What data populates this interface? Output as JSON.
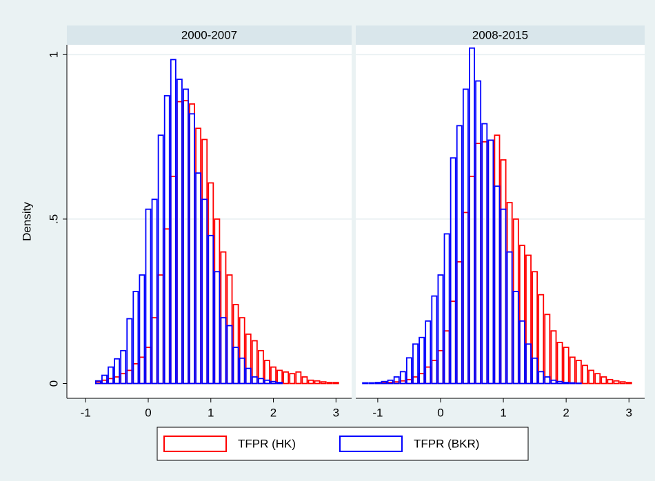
{
  "chart_data": [
    {
      "type": "histogram",
      "title": "2000-2007",
      "y_label": "Density",
      "bins": [
        -0.85,
        -0.75,
        -0.65,
        -0.55,
        -0.45,
        -0.35,
        -0.25,
        -0.15,
        -0.05,
        0.05,
        0.15,
        0.25,
        0.35,
        0.45,
        0.55,
        0.65,
        0.75,
        0.85,
        0.95,
        1.05,
        1.15,
        1.25,
        1.35,
        1.45,
        1.55,
        1.65,
        1.75,
        1.85,
        1.95,
        2.05,
        2.15,
        2.25,
        2.35,
        2.45,
        2.55,
        2.65,
        2.75,
        2.85,
        2.95,
        3.05
      ],
      "series": [
        {
          "name": "TFPR (HK)",
          "color": "#ff0000",
          "values": [
            0.005,
            0.01,
            0.015,
            0.02,
            0.03,
            0.04,
            0.06,
            0.08,
            0.11,
            0.2,
            0.33,
            0.47,
            0.63,
            0.857,
            0.86,
            0.85,
            0.776,
            0.742,
            0.61,
            0.5,
            0.4,
            0.33,
            0.24,
            0.2,
            0.15,
            0.13,
            0.1,
            0.07,
            0.05,
            0.04,
            0.035,
            0.03,
            0.035,
            0.02,
            0.01,
            0.008,
            0.005,
            0.003,
            0.003
          ]
        },
        {
          "name": "TFPR (BKR)",
          "color": "#0000ff",
          "values": [
            0.008,
            0.025,
            0.05,
            0.075,
            0.1,
            0.197,
            0.28,
            0.33,
            0.53,
            0.56,
            0.755,
            0.875,
            0.985,
            0.925,
            0.895,
            0.82,
            0.64,
            0.56,
            0.45,
            0.34,
            0.2,
            0.176,
            0.11,
            0.077,
            0.046,
            0.02,
            0.015,
            0.01,
            0.006,
            0.003,
            0,
            0,
            0,
            0,
            0,
            0,
            0,
            0,
            0
          ]
        }
      ],
      "xlim": [
        -1.3,
        3.25
      ],
      "ylim": [
        -0.045,
        1.03
      ],
      "xticks": [
        -1,
        0,
        1,
        2,
        3
      ],
      "yticks": [
        0,
        {
          "value": 0.5,
          "label": ".5"
        },
        1
      ],
      "grid": true
    },
    {
      "type": "histogram",
      "title": "2008-2015",
      "bins": [
        -1.25,
        -1.15,
        -1.05,
        -0.95,
        -0.85,
        -0.75,
        -0.65,
        -0.55,
        -0.45,
        -0.35,
        -0.25,
        -0.15,
        -0.05,
        0.05,
        0.15,
        0.25,
        0.35,
        0.45,
        0.55,
        0.65,
        0.75,
        0.85,
        0.95,
        1.05,
        1.15,
        1.25,
        1.35,
        1.45,
        1.55,
        1.65,
        1.75,
        1.85,
        1.95,
        2.05,
        2.15,
        2.25,
        2.35,
        2.45,
        2.55,
        2.65,
        2.75,
        2.85,
        2.95,
        3.05
      ],
      "series": [
        {
          "color": "#ff0000",
          "values": [
            0,
            0,
            0.001,
            0.002,
            0.003,
            0.005,
            0.008,
            0.012,
            0.02,
            0.03,
            0.05,
            0.07,
            0.1,
            0.16,
            0.25,
            0.37,
            0.52,
            0.63,
            0.73,
            0.735,
            0.74,
            0.755,
            0.68,
            0.55,
            0.5,
            0.42,
            0.39,
            0.34,
            0.27,
            0.21,
            0.16,
            0.125,
            0.11,
            0.08,
            0.07,
            0.055,
            0.04,
            0.03,
            0.02,
            0.012,
            0.008,
            0.005,
            0.003
          ]
        },
        {
          "color": "#0000ff",
          "values": [
            0.002,
            0.002,
            0.003,
            0.006,
            0.01,
            0.02,
            0.036,
            0.078,
            0.12,
            0.14,
            0.19,
            0.266,
            0.33,
            0.455,
            0.686,
            0.784,
            0.895,
            1.02,
            0.92,
            0.79,
            0.74,
            0.6,
            0.53,
            0.4,
            0.28,
            0.19,
            0.12,
            0.077,
            0.036,
            0.02,
            0.01,
            0.006,
            0.003,
            0.002,
            0.001,
            0,
            0,
            0,
            0,
            0,
            0,
            0,
            0
          ]
        }
      ],
      "xlim": [
        -1.35,
        3.25
      ],
      "ylim": [
        -0.045,
        1.03
      ],
      "xticks": [
        -1,
        0,
        1,
        2,
        3
      ],
      "yticks": [
        0,
        0.5,
        1
      ],
      "grid": true
    }
  ]
}
